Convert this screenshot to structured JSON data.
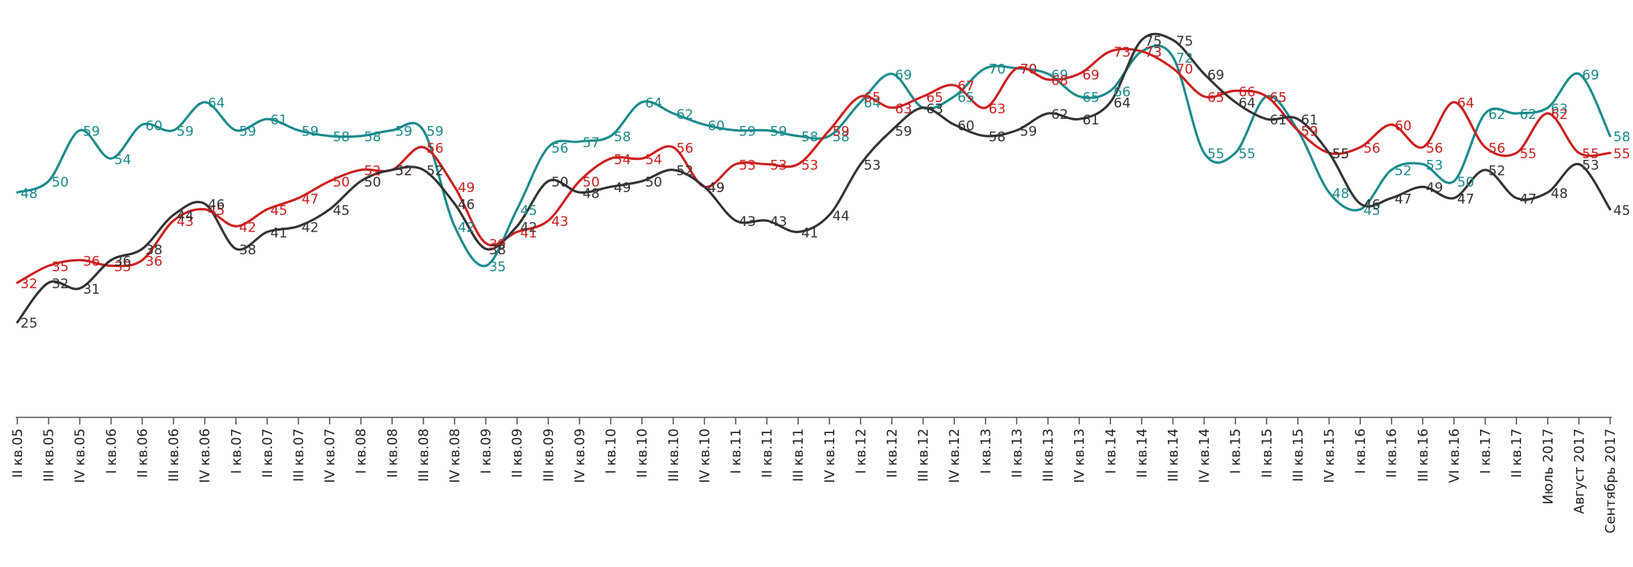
{
  "chart_data": {
    "type": "line",
    "categories": [
      "II кв.05",
      "III кв.05",
      "IV кв.05",
      "I кв.06",
      "II кв.06",
      "III кв.06",
      "IV кв.06",
      "I кв.07",
      "II кв.07",
      "III кв.07",
      "IV кв.07",
      "I кв.08",
      "II кв.08",
      "III кв.08",
      "IV кв.08",
      "I кв.09",
      "II кв.09",
      "III кв.09",
      "IV кв.09",
      "I кв.10",
      "II кв.10",
      "III кв.10",
      "IV кв.10",
      "I кв.11",
      "II кв.11",
      "III кв.11",
      "IV кв.11",
      "I кв.12",
      "II кв.12",
      "III кв.12",
      "IV кв.12",
      "I кв.13",
      "II кв.13",
      "III кв.13",
      "IV кв.13",
      "I кв.14",
      "II кв.14",
      "III кв.14",
      "IV кв.14",
      "I кв.15",
      "II кв.15",
      "III кв.15",
      "IV кв.15",
      "I кв.16",
      "II кв.16",
      "III кв.16",
      "VI кв.16",
      "I кв.17",
      "II кв.17",
      "Июль 2017",
      "Август 2017",
      "Сентябрь 2017"
    ],
    "series": [
      {
        "color": "#1b8a8c",
        "values": [
          48,
          50,
          59,
          54,
          60,
          59,
          64,
          59,
          61,
          59,
          58,
          58,
          59,
          59,
          42,
          35,
          45,
          56,
          57,
          58,
          64,
          62,
          60,
          59,
          59,
          58,
          58,
          64,
          69,
          63,
          65,
          70,
          70,
          69,
          65,
          66,
          73,
          72,
          55,
          55,
          65,
          59,
          48,
          45,
          52,
          53,
          50,
          62,
          62,
          63,
          69,
          58
        ]
      },
      {
        "color": "#cc1f1f",
        "values": [
          32,
          35,
          36,
          35,
          36,
          43,
          45,
          42,
          45,
          47,
          50,
          52,
          52,
          56,
          49,
          39,
          41,
          43,
          50,
          54,
          54,
          56,
          49,
          53,
          53,
          53,
          59,
          65,
          63,
          65,
          67,
          63,
          70,
          68,
          69,
          73,
          73,
          70,
          65,
          66,
          65,
          59,
          55,
          56,
          60,
          56,
          64,
          56,
          55,
          62,
          55,
          55
        ]
      },
      {
        "color": "#333333",
        "values": [
          25,
          32,
          31,
          36,
          38,
          44,
          46,
          38,
          41,
          42,
          45,
          50,
          52,
          52,
          46,
          38,
          42,
          50,
          48,
          49,
          50,
          52,
          49,
          43,
          43,
          41,
          44,
          53,
          59,
          63,
          60,
          58,
          59,
          62,
          61,
          64,
          75,
          75,
          69,
          64,
          61,
          61,
          55,
          46,
          47,
          49,
          47,
          52,
          47,
          48,
          53,
          45
        ]
      }
    ],
    "ylim": [
      20,
      80
    ],
    "grid": false,
    "legend": "none"
  }
}
